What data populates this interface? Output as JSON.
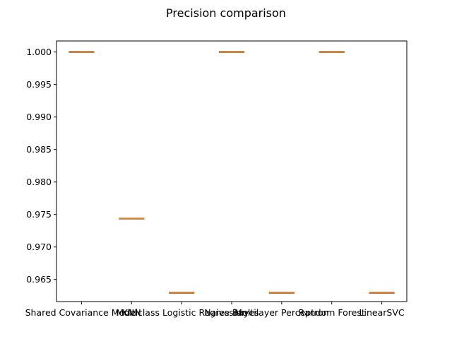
{
  "chart_data": {
    "type": "box",
    "title": "Precision comparison",
    "xlabel": "",
    "ylabel": "",
    "ylim": [
      0.9616,
      1.0017
    ],
    "yticks": [
      "0.965",
      "0.970",
      "0.975",
      "0.980",
      "0.985",
      "0.990",
      "0.995",
      "1.000"
    ],
    "categories": [
      "Shared Covariance Model",
      "KNN",
      "Multiclass Logistic Regression",
      "Naive Bayes",
      "Multilayer Perceptron",
      "Random Forest",
      "LinearSVC"
    ],
    "values": [
      1.0,
      0.97436,
      0.96296,
      1.0,
      0.96296,
      1.0,
      0.96296
    ],
    "grid": false,
    "colors": {
      "box": "#000000",
      "median": "#ff7f0e"
    }
  }
}
